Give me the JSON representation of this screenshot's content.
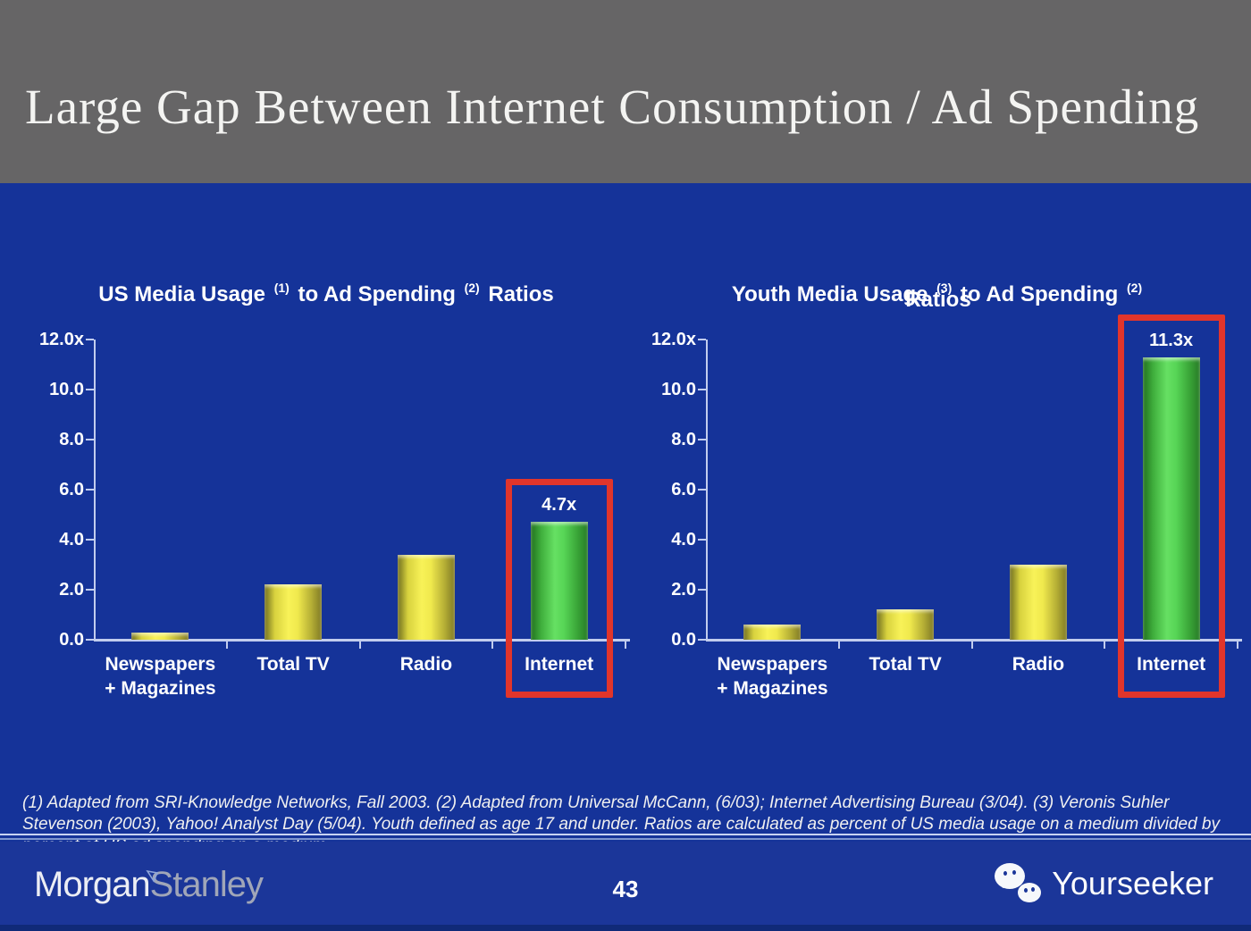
{
  "slide": {
    "title": "Large Gap Between Internet Consumption / Ad Spending",
    "page_number": "43",
    "footnote": "(1) Adapted from SRI-Knowledge Networks, Fall 2003.  (2) Adapted from Universal McCann, (6/03); Internet Advertising Bureau (3/04). (3) Veronis Suhler Stevenson (2003), Yahoo! Analyst Day (5/04).  Youth defined as age 17 and under.  Ratios are calculated as percent of US media usage on a medium divided by percent of US ad spending on a medium.",
    "brand_left": {
      "part1": "Morgan",
      "part2": "Stanley"
    },
    "brand_right": "Yourseeker"
  },
  "colors": {
    "header_gray": "#666566",
    "body_blue": "#153399",
    "footer_blue": "#1b3699",
    "bar_yellow": "#f3ec4e",
    "bar_green": "#57d556",
    "highlight_red": "#e1352b",
    "axis": "#c2cdee",
    "text_white": "#ffffff"
  },
  "chart_data": [
    {
      "type": "bar",
      "title": "US Media Usage (1) to Ad Spending (2) Ratios",
      "title_parts": [
        {
          "text": "US Media Usage"
        },
        {
          "sup": "(1)"
        },
        {
          "text": "to Ad Spending"
        },
        {
          "sup": "(2)"
        },
        {
          "text": "Ratios"
        }
      ],
      "title_line2": "",
      "categories": [
        "Newspapers + Magazines",
        "Total TV",
        "Radio",
        "Internet"
      ],
      "category_lines": [
        [
          "Newspapers",
          "+ Magazines"
        ],
        [
          "Total TV"
        ],
        [
          "Radio"
        ],
        [
          "Internet"
        ]
      ],
      "values": [
        0.3,
        2.2,
        3.4,
        4.7
      ],
      "bar_colors": [
        "yellow",
        "yellow",
        "yellow",
        "green"
      ],
      "highlight_index": 3,
      "highlight_label": "4.7x",
      "xlabel": "",
      "ylabel": "",
      "ylim": [
        0,
        12
      ],
      "y_ticks": [
        "12.0x",
        "10.0",
        "8.0",
        "6.0",
        "4.0",
        "2.0",
        "0.0"
      ],
      "grid": false,
      "legend_position": "none"
    },
    {
      "type": "bar",
      "title": "Youth Media Usage (3) to Ad Spending (2) Ratios",
      "title_parts": [
        {
          "text": "Youth Media Usage"
        },
        {
          "sup": "(3)"
        },
        {
          "text": "to Ad Spending"
        },
        {
          "sup": "(2)"
        }
      ],
      "title_line2": "Ratios",
      "categories": [
        "Newspapers + Magazines",
        "Total TV",
        "Radio",
        "Internet"
      ],
      "category_lines": [
        [
          "Newspapers",
          "+ Magazines"
        ],
        [
          "Total TV"
        ],
        [
          "Radio"
        ],
        [
          "Internet"
        ]
      ],
      "values": [
        0.6,
        1.2,
        3.0,
        11.3
      ],
      "bar_colors": [
        "yellow",
        "yellow",
        "yellow",
        "green"
      ],
      "highlight_index": 3,
      "highlight_label": "11.3x",
      "xlabel": "",
      "ylabel": "",
      "ylim": [
        0,
        12
      ],
      "y_ticks": [
        "12.0x",
        "10.0",
        "8.0",
        "6.0",
        "4.0",
        "2.0",
        "0.0"
      ],
      "grid": false,
      "legend_position": "none"
    }
  ]
}
